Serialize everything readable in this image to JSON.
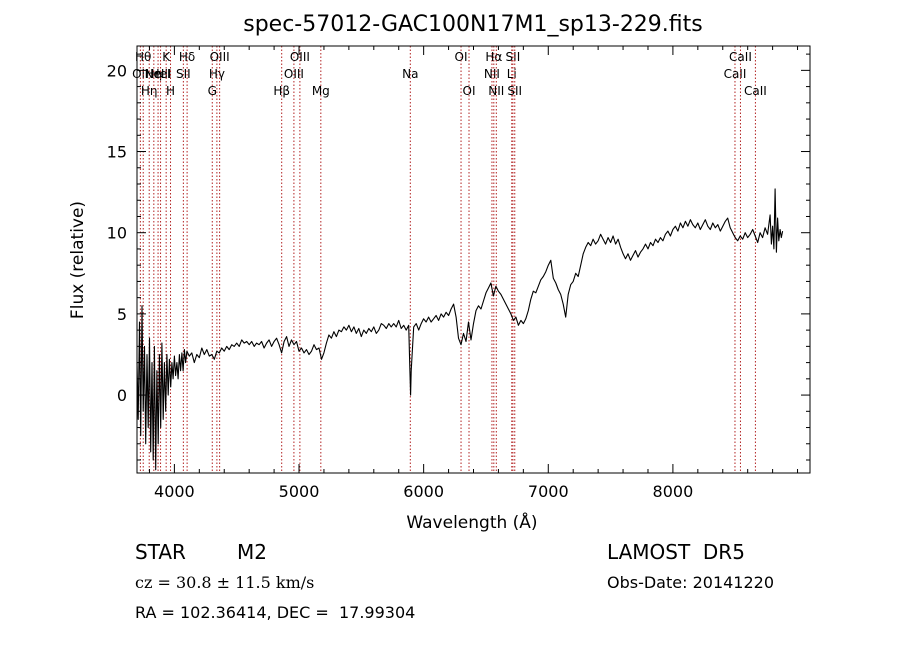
{
  "chart_data": {
    "type": "line",
    "title": "spec-57012-GAC100N17M1_sp13-229.fits",
    "xlabel": "Wavelength (Å)",
    "ylabel": "Flux (relative)",
    "xlim": [
      3700,
      9100
    ],
    "ylim": [
      -4.8,
      21.5
    ],
    "x_ticks": [
      4000,
      5000,
      6000,
      7000,
      8000
    ],
    "y_ticks": [
      0,
      5,
      10,
      15,
      20
    ],
    "grid": false,
    "series": [
      {
        "points": [
          [
            3700,
            2.0
          ],
          [
            3710,
            -1.5
          ],
          [
            3720,
            4.5
          ],
          [
            3730,
            -2.5
          ],
          [
            3740,
            5.5
          ],
          [
            3750,
            -1.0
          ],
          [
            3760,
            3.0
          ],
          [
            3770,
            -3.0
          ],
          [
            3780,
            2.5
          ],
          [
            3790,
            -2.0
          ],
          [
            3800,
            3.5
          ],
          [
            3810,
            -3.5
          ],
          [
            3820,
            2.0
          ],
          [
            3830,
            -4.0
          ],
          [
            3840,
            3.0
          ],
          [
            3850,
            -4.6
          ],
          [
            3860,
            1.5
          ],
          [
            3870,
            -3.0
          ],
          [
            3880,
            2.5
          ],
          [
            3890,
            -2.0
          ],
          [
            3900,
            3.2
          ],
          [
            3910,
            -1.5
          ],
          [
            3920,
            2.0
          ],
          [
            3930,
            -1.0
          ],
          [
            3940,
            2.5
          ],
          [
            3950,
            0.0
          ],
          [
            3960,
            2.2
          ],
          [
            3970,
            0.5
          ],
          [
            3980,
            2.0
          ],
          [
            3990,
            1.0
          ],
          [
            4000,
            2.4
          ],
          [
            4010,
            1.2
          ],
          [
            4020,
            2.0
          ],
          [
            4030,
            1.0
          ],
          [
            4040,
            2.5
          ],
          [
            4050,
            1.5
          ],
          [
            4060,
            2.6
          ],
          [
            4070,
            1.5
          ],
          [
            4080,
            2.8
          ],
          [
            4090,
            2.0
          ],
          [
            4100,
            2.7
          ],
          [
            4120,
            2.4
          ],
          [
            4140,
            2.6
          ],
          [
            4160,
            2.0
          ],
          [
            4180,
            2.5
          ],
          [
            4200,
            2.3
          ],
          [
            4220,
            2.9
          ],
          [
            4240,
            2.5
          ],
          [
            4260,
            2.8
          ],
          [
            4280,
            2.4
          ],
          [
            4300,
            2.5
          ],
          [
            4320,
            2.2
          ],
          [
            4340,
            2.7
          ],
          [
            4360,
            2.6
          ],
          [
            4380,
            2.9
          ],
          [
            4400,
            2.7
          ],
          [
            4420,
            3.0
          ],
          [
            4440,
            2.8
          ],
          [
            4460,
            3.1
          ],
          [
            4480,
            3.0
          ],
          [
            4500,
            3.2
          ],
          [
            4520,
            3.0
          ],
          [
            4540,
            3.4
          ],
          [
            4560,
            3.2
          ],
          [
            4580,
            3.3
          ],
          [
            4600,
            3.1
          ],
          [
            4620,
            3.3
          ],
          [
            4640,
            3.0
          ],
          [
            4660,
            3.2
          ],
          [
            4680,
            3.1
          ],
          [
            4700,
            3.3
          ],
          [
            4720,
            2.9
          ],
          [
            4740,
            3.2
          ],
          [
            4760,
            3.4
          ],
          [
            4780,
            3.0
          ],
          [
            4800,
            3.3
          ],
          [
            4820,
            3.5
          ],
          [
            4840,
            3.1
          ],
          [
            4860,
            2.6
          ],
          [
            4880,
            3.3
          ],
          [
            4900,
            3.6
          ],
          [
            4920,
            3.0
          ],
          [
            4940,
            3.4
          ],
          [
            4960,
            3.1
          ],
          [
            4980,
            3.3
          ],
          [
            5000,
            2.7
          ],
          [
            5020,
            2.9
          ],
          [
            5040,
            2.6
          ],
          [
            5060,
            2.8
          ],
          [
            5080,
            2.5
          ],
          [
            5100,
            2.7
          ],
          [
            5120,
            3.1
          ],
          [
            5140,
            2.8
          ],
          [
            5160,
            2.9
          ],
          [
            5180,
            2.2
          ],
          [
            5200,
            2.6
          ],
          [
            5220,
            3.2
          ],
          [
            5240,
            3.7
          ],
          [
            5260,
            3.5
          ],
          [
            5280,
            3.9
          ],
          [
            5300,
            3.6
          ],
          [
            5320,
            4.0
          ],
          [
            5340,
            3.9
          ],
          [
            5360,
            4.2
          ],
          [
            5380,
            4.0
          ],
          [
            5400,
            4.3
          ],
          [
            5420,
            3.9
          ],
          [
            5440,
            4.2
          ],
          [
            5460,
            3.8
          ],
          [
            5480,
            4.1
          ],
          [
            5500,
            3.6
          ],
          [
            5520,
            4.0
          ],
          [
            5540,
            3.8
          ],
          [
            5560,
            4.1
          ],
          [
            5580,
            3.9
          ],
          [
            5600,
            4.2
          ],
          [
            5620,
            3.8
          ],
          [
            5640,
            4.0
          ],
          [
            5660,
            4.4
          ],
          [
            5680,
            4.3
          ],
          [
            5700,
            4.1
          ],
          [
            5720,
            4.4
          ],
          [
            5740,
            4.2
          ],
          [
            5760,
            4.4
          ],
          [
            5780,
            4.2
          ],
          [
            5800,
            4.6
          ],
          [
            5820,
            4.1
          ],
          [
            5840,
            4.3
          ],
          [
            5860,
            4.0
          ],
          [
            5880,
            4.3
          ],
          [
            5890,
            1.5
          ],
          [
            5895,
            0.0
          ],
          [
            5900,
            1.5
          ],
          [
            5920,
            4.2
          ],
          [
            5940,
            4.4
          ],
          [
            5960,
            4.0
          ],
          [
            5980,
            4.4
          ],
          [
            6000,
            4.7
          ],
          [
            6020,
            4.5
          ],
          [
            6040,
            4.8
          ],
          [
            6060,
            4.5
          ],
          [
            6080,
            4.7
          ],
          [
            6100,
            4.9
          ],
          [
            6120,
            4.6
          ],
          [
            6140,
            5.0
          ],
          [
            6160,
            4.8
          ],
          [
            6180,
            5.1
          ],
          [
            6200,
            4.9
          ],
          [
            6220,
            5.3
          ],
          [
            6240,
            5.6
          ],
          [
            6260,
            4.8
          ],
          [
            6280,
            3.5
          ],
          [
            6300,
            3.1
          ],
          [
            6320,
            3.8
          ],
          [
            6340,
            3.3
          ],
          [
            6360,
            4.5
          ],
          [
            6380,
            3.4
          ],
          [
            6400,
            4.4
          ],
          [
            6420,
            5.2
          ],
          [
            6440,
            5.5
          ],
          [
            6460,
            5.3
          ],
          [
            6480,
            5.8
          ],
          [
            6500,
            6.3
          ],
          [
            6520,
            6.6
          ],
          [
            6540,
            6.9
          ],
          [
            6560,
            6.1
          ],
          [
            6580,
            6.7
          ],
          [
            6600,
            6.4
          ],
          [
            6620,
            6.2
          ],
          [
            6640,
            5.9
          ],
          [
            6660,
            5.6
          ],
          [
            6680,
            5.3
          ],
          [
            6700,
            5.0
          ],
          [
            6720,
            4.6
          ],
          [
            6740,
            4.8
          ],
          [
            6760,
            4.3
          ],
          [
            6780,
            4.6
          ],
          [
            6800,
            4.4
          ],
          [
            6820,
            4.7
          ],
          [
            6840,
            5.2
          ],
          [
            6860,
            5.9
          ],
          [
            6880,
            6.4
          ],
          [
            6900,
            6.3
          ],
          [
            6920,
            6.7
          ],
          [
            6940,
            7.1
          ],
          [
            6960,
            7.3
          ],
          [
            6980,
            7.6
          ],
          [
            7000,
            8.0
          ],
          [
            7020,
            8.3
          ],
          [
            7040,
            7.2
          ],
          [
            7060,
            6.9
          ],
          [
            7080,
            6.5
          ],
          [
            7100,
            6.2
          ],
          [
            7120,
            5.6
          ],
          [
            7140,
            4.8
          ],
          [
            7160,
            6.2
          ],
          [
            7180,
            6.8
          ],
          [
            7200,
            7.0
          ],
          [
            7220,
            7.5
          ],
          [
            7240,
            7.3
          ],
          [
            7260,
            8.0
          ],
          [
            7280,
            8.7
          ],
          [
            7300,
            9.1
          ],
          [
            7320,
            9.4
          ],
          [
            7340,
            9.2
          ],
          [
            7360,
            9.6
          ],
          [
            7380,
            9.3
          ],
          [
            7400,
            9.5
          ],
          [
            7420,
            9.9
          ],
          [
            7440,
            9.6
          ],
          [
            7460,
            9.3
          ],
          [
            7480,
            9.7
          ],
          [
            7500,
            9.4
          ],
          [
            7520,
            9.8
          ],
          [
            7540,
            9.3
          ],
          [
            7560,
            9.6
          ],
          [
            7580,
            9.1
          ],
          [
            7600,
            8.7
          ],
          [
            7620,
            8.4
          ],
          [
            7640,
            8.7
          ],
          [
            7660,
            8.3
          ],
          [
            7680,
            8.6
          ],
          [
            7700,
            8.9
          ],
          [
            7720,
            8.5
          ],
          [
            7740,
            8.8
          ],
          [
            7760,
            9.0
          ],
          [
            7780,
            9.3
          ],
          [
            7800,
            9.0
          ],
          [
            7820,
            9.4
          ],
          [
            7840,
            9.2
          ],
          [
            7860,
            9.6
          ],
          [
            7880,
            9.4
          ],
          [
            7900,
            9.7
          ],
          [
            7920,
            9.5
          ],
          [
            7940,
            9.9
          ],
          [
            7960,
            10.1
          ],
          [
            7980,
            9.8
          ],
          [
            8000,
            10.2
          ],
          [
            8020,
            10.4
          ],
          [
            8040,
            10.1
          ],
          [
            8060,
            10.6
          ],
          [
            8080,
            10.3
          ],
          [
            8100,
            10.7
          ],
          [
            8120,
            10.4
          ],
          [
            8140,
            10.8
          ],
          [
            8160,
            10.5
          ],
          [
            8180,
            10.3
          ],
          [
            8200,
            10.6
          ],
          [
            8220,
            10.2
          ],
          [
            8240,
            10.5
          ],
          [
            8260,
            10.8
          ],
          [
            8280,
            10.4
          ],
          [
            8300,
            10.2
          ],
          [
            8320,
            10.6
          ],
          [
            8340,
            10.3
          ],
          [
            8360,
            10.5
          ],
          [
            8380,
            10.1
          ],
          [
            8400,
            10.4
          ],
          [
            8420,
            10.7
          ],
          [
            8440,
            10.9
          ],
          [
            8460,
            10.3
          ],
          [
            8480,
            10.0
          ],
          [
            8500,
            9.7
          ],
          [
            8520,
            9.5
          ],
          [
            8540,
            9.8
          ],
          [
            8560,
            9.6
          ],
          [
            8580,
            10.0
          ],
          [
            8600,
            9.7
          ],
          [
            8620,
            9.9
          ],
          [
            8640,
            10.2
          ],
          [
            8660,
            9.8
          ],
          [
            8680,
            9.4
          ],
          [
            8700,
            10.0
          ],
          [
            8720,
            9.7
          ],
          [
            8740,
            10.3
          ],
          [
            8760,
            9.9
          ],
          [
            8780,
            11.1
          ],
          [
            8790,
            9.3
          ],
          [
            8800,
            10.4
          ],
          [
            8810,
            9.0
          ],
          [
            8820,
            12.7
          ],
          [
            8830,
            8.8
          ],
          [
            8840,
            10.9
          ],
          [
            8850,
            9.5
          ],
          [
            8860,
            10.2
          ],
          [
            8870,
            9.7
          ],
          [
            8880,
            10.1
          ]
        ]
      }
    ],
    "lines": [
      {
        "x": 3727,
        "label": "OII",
        "row": 1
      },
      {
        "x": 3750,
        "label": "Hθ",
        "row": 0
      },
      {
        "x": 3798,
        "label": "Hη",
        "row": 2
      },
      {
        "x": 3835,
        "label": "Hη",
        "row": 1
      },
      {
        "x": 3869,
        "label": "NeIII",
        "row": 1
      },
      {
        "x": 3889,
        "label": "HeI",
        "row": 1
      },
      {
        "x": 3934,
        "label": "K",
        "row": 0
      },
      {
        "x": 3969,
        "label": "H",
        "row": 2
      },
      {
        "x": 4072,
        "label": "SII",
        "row": 1
      },
      {
        "x": 4102,
        "label": "Hδ",
        "row": 0
      },
      {
        "x": 4304,
        "label": "G",
        "row": 2
      },
      {
        "x": 4341,
        "label": "Hγ",
        "row": 1
      },
      {
        "x": 4363,
        "label": "OIII",
        "row": 0
      },
      {
        "x": 4861,
        "label": "Hβ",
        "row": 2
      },
      {
        "x": 4959,
        "label": "OIII",
        "row": 1
      },
      {
        "x": 5007,
        "label": "OIII",
        "row": 0
      },
      {
        "x": 5175,
        "label": "Mg",
        "row": 2
      },
      {
        "x": 5893,
        "label": "Na",
        "row": 1
      },
      {
        "x": 6300,
        "label": "OI",
        "row": 0
      },
      {
        "x": 6364,
        "label": "OI",
        "row": 2
      },
      {
        "x": 6548,
        "label": "NII",
        "row": 1
      },
      {
        "x": 6563,
        "label": "Hα",
        "row": 0
      },
      {
        "x": 6583,
        "label": "NII",
        "row": 2
      },
      {
        "x": 6707,
        "label": "Li",
        "row": 1
      },
      {
        "x": 6716,
        "label": "SII",
        "row": 0
      },
      {
        "x": 6731,
        "label": "SII",
        "row": 2
      },
      {
        "x": 8498,
        "label": "CaII",
        "row": 1
      },
      {
        "x": 8542,
        "label": "CaII",
        "row": 0
      },
      {
        "x": 8662,
        "label": "CaII",
        "row": 2
      }
    ]
  },
  "info": {
    "class": "STAR",
    "subclass": "M2",
    "survey": "LAMOST  DR5",
    "cz": "cz = 30.8 ± 11.5 km/s",
    "obs_date": "Obs-Date: 20141220",
    "radec": "RA = 102.36414, DEC =  17.99304"
  }
}
